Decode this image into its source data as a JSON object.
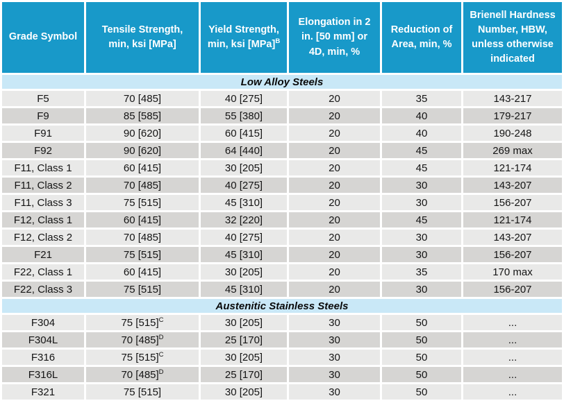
{
  "colors": {
    "header_bg": "#1899C9",
    "header_text": "#FFFFFF",
    "section_bg": "#C9E8F7",
    "row_light_bg": "#E9E9E8",
    "row_dark_bg": "#D6D5D3",
    "data_text": "#141414",
    "grid_gap": "#FFFFFF"
  },
  "table": {
    "columns": [
      {
        "label": "Grade Symbol",
        "sup": ""
      },
      {
        "label": "Tensile Strength, min, ksi [MPa]",
        "sup": ""
      },
      {
        "label": "Yield Strength, min, ksi [MPa]",
        "sup": "B"
      },
      {
        "label": "Elongation in 2 in. [50 mm] or 4D, min, %",
        "sup": ""
      },
      {
        "label": "Reduction of Area, min, %",
        "sup": ""
      },
      {
        "label": "Brienell Hardness Number, HBW, unless otherwise indicated",
        "sup": ""
      }
    ],
    "sections": [
      {
        "title": "Low Alloy Steels",
        "rows": [
          {
            "grade": "F5",
            "tensile": "70 [485]",
            "tensile_sup": "",
            "yield": "40 [275]",
            "elongation": "20",
            "reduction": "35",
            "hardness": "143-217"
          },
          {
            "grade": "F9",
            "tensile": "85 [585]",
            "tensile_sup": "",
            "yield": "55 [380]",
            "elongation": "20",
            "reduction": "40",
            "hardness": "179-217"
          },
          {
            "grade": "F91",
            "tensile": "90 [620]",
            "tensile_sup": "",
            "yield": "60 [415]",
            "elongation": "20",
            "reduction": "40",
            "hardness": "190-248"
          },
          {
            "grade": "F92",
            "tensile": "90 [620]",
            "tensile_sup": "",
            "yield": "64 [440]",
            "elongation": "20",
            "reduction": "45",
            "hardness": "269 max"
          },
          {
            "grade": "F11, Class 1",
            "tensile": "60 [415]",
            "tensile_sup": "",
            "yield": "30 [205]",
            "elongation": "20",
            "reduction": "45",
            "hardness": "121-174"
          },
          {
            "grade": "F11, Class 2",
            "tensile": "70 [485]",
            "tensile_sup": "",
            "yield": "40 [275]",
            "elongation": "20",
            "reduction": "30",
            "hardness": "143-207"
          },
          {
            "grade": "F11, Class 3",
            "tensile": "75 [515]",
            "tensile_sup": "",
            "yield": "45 [310]",
            "elongation": "20",
            "reduction": "30",
            "hardness": "156-207"
          },
          {
            "grade": "F12, Class 1",
            "tensile": "60 [415]",
            "tensile_sup": "",
            "yield": "32 [220]",
            "elongation": "20",
            "reduction": "45",
            "hardness": "121-174"
          },
          {
            "grade": "F12, Class 2",
            "tensile": "70 [485]",
            "tensile_sup": "",
            "yield": "40 [275]",
            "elongation": "20",
            "reduction": "30",
            "hardness": "143-207"
          },
          {
            "grade": "F21",
            "tensile": "75 [515]",
            "tensile_sup": "",
            "yield": "45 [310]",
            "elongation": "20",
            "reduction": "30",
            "hardness": "156-207"
          },
          {
            "grade": "F22, Class 1",
            "tensile": "60 [415]",
            "tensile_sup": "",
            "yield": "30 [205]",
            "elongation": "20",
            "reduction": "35",
            "hardness": "170 max"
          },
          {
            "grade": "F22, Class 3",
            "tensile": "75 [515]",
            "tensile_sup": "",
            "yield": "45 [310]",
            "elongation": "20",
            "reduction": "30",
            "hardness": "156-207"
          }
        ]
      },
      {
        "title": "Austenitic Stainless Steels",
        "rows": [
          {
            "grade": "F304",
            "tensile": "75 [515]",
            "tensile_sup": "C",
            "yield": "30 [205]",
            "elongation": "30",
            "reduction": "50",
            "hardness": "..."
          },
          {
            "grade": "F304L",
            "tensile": "70 [485]",
            "tensile_sup": "D",
            "yield": "25 [170]",
            "elongation": "30",
            "reduction": "50",
            "hardness": "..."
          },
          {
            "grade": "F316",
            "tensile": "75 [515]",
            "tensile_sup": "C",
            "yield": "30 [205]",
            "elongation": "30",
            "reduction": "50",
            "hardness": "..."
          },
          {
            "grade": "F316L",
            "tensile": "70 [485]",
            "tensile_sup": "D",
            "yield": "25 [170]",
            "elongation": "30",
            "reduction": "50",
            "hardness": "..."
          },
          {
            "grade": "F321",
            "tensile": "75 [515]",
            "tensile_sup": "",
            "yield": "30 [205]",
            "elongation": "30",
            "reduction": "50",
            "hardness": "..."
          }
        ]
      }
    ]
  }
}
